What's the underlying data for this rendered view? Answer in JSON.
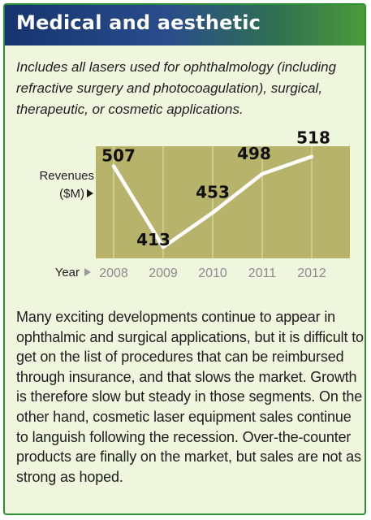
{
  "header": {
    "title": "Medical and aesthetic"
  },
  "description": "Includes all lasers used for ophthalmology (including refractive surgery and photocoagulation), surgical, therapeutic, or cosmetic applications.",
  "colors": {
    "plot_background": "#b8b36a",
    "line": "#ffffff",
    "border": "#2d8f33",
    "card_background": "#eef6de",
    "tick_label": "#8c8c8c"
  },
  "chart_data": {
    "type": "line",
    "ylabel_line1": "Revenues",
    "ylabel_line2": "($M)",
    "xlabel": "Year",
    "x": [
      "2008",
      "2009",
      "2010",
      "2011",
      "2012"
    ],
    "series": [
      {
        "values": [
          507,
          413,
          453,
          498,
          518
        ]
      }
    ],
    "data_labels": [
      "507",
      "413",
      "453",
      "498",
      "518"
    ],
    "ylim": [
      400,
      530
    ],
    "grid": true,
    "gridlines": "vertical"
  },
  "body_text": "Many exciting developments continue to appear in ophthalmic and surgical applications, but it is difficult to get on the list of procedures that can be reimbursed through insurance, and that slows the market. Growth is therefore slow but steady in those segments. On the other hand, cosmetic laser equipment sales continue to languish following the recession. Over-the-counter products are finally on the market, but sales are not as strong as hoped."
}
